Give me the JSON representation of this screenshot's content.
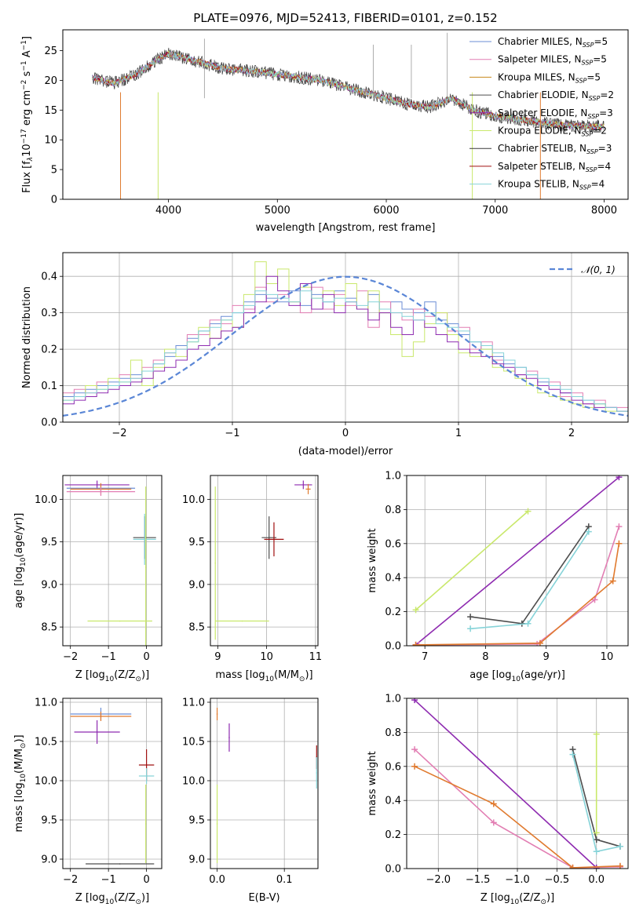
{
  "title": "PLATE=0976, MJD=52413, FIBERID=0101, z=0.152",
  "colors": {
    "chabrier_miles": "#6b8ed6",
    "salpeter_miles": "#e27eb3",
    "kroupa_miles": "#c8891c",
    "chabrier_elodie": "#4d4d4d",
    "salpeter_elodie": "#8e2bb0",
    "kroupa_elodie": "#c9e86b",
    "chabrier_stelib": "#3a3a3a",
    "salpeter_stelib": "#a01010",
    "kroupa_stelib": "#86d3d8",
    "gaussian": "#5a86d6",
    "kroupa_miles_plot": "#e07a2e"
  },
  "chart_data": [
    {
      "id": "spectrum",
      "type": "line",
      "xlabel": "wavelength [Angstrom, rest frame]",
      "ylabel_parts": [
        "Flux [f",
        "λ",
        "10",
        "−17",
        " erg cm",
        "−2",
        " s",
        "−1",
        " A",
        "−1",
        "]"
      ],
      "xlim": [
        3030,
        8220
      ],
      "ylim": [
        0,
        28.5
      ],
      "xticks": [
        4000,
        5000,
        6000,
        7000,
        8000
      ],
      "yticks": [
        0,
        5,
        10,
        15,
        20,
        25
      ],
      "grid": false,
      "legend_position": "top-right",
      "x": [
        3300,
        3500,
        3700,
        3900,
        4000,
        4100,
        4300,
        4500,
        4800,
        5000,
        5200,
        5400,
        5600,
        5800,
        6000,
        6200,
        6400,
        6600,
        6700,
        6800,
        6900,
        7000,
        7200,
        7400,
        7600,
        7800,
        8000
      ],
      "y": [
        20.5,
        19.5,
        21.0,
        23.5,
        24.5,
        24.0,
        23.0,
        22.0,
        21.5,
        21.0,
        20.5,
        20.0,
        19.0,
        18.0,
        17.0,
        16.0,
        15.5,
        17.0,
        16.0,
        15.0,
        14.5,
        14.0,
        13.5,
        13.0,
        12.5,
        12.3,
        12.2
      ],
      "series": [
        {
          "name": "Chabrier MILES, N",
          "sub": "SSP",
          "suffix": "=5",
          "color_key": "chabrier_miles"
        },
        {
          "name": "Salpeter MILES, N",
          "sub": "SSP",
          "suffix": "=5",
          "color_key": "salpeter_miles"
        },
        {
          "name": "Kroupa MILES, N",
          "sub": "SSP",
          "suffix": "=5",
          "color_key": "kroupa_miles"
        },
        {
          "name": "Chabrier ELODIE, N",
          "sub": "SSP",
          "suffix": "=2",
          "color_key": "chabrier_elodie"
        },
        {
          "name": "Salpeter ELODIE, N",
          "sub": "SSP",
          "suffix": "=3",
          "color_key": "salpeter_elodie"
        },
        {
          "name": "Kroupa ELODIE, N",
          "sub": "SSP",
          "suffix": "=2",
          "color_key": "kroupa_elodie"
        },
        {
          "name": "Chabrier STELIB, N",
          "sub": "SSP",
          "suffix": "=3",
          "color_key": "chabrier_stelib"
        },
        {
          "name": "Salpeter STELIB, N",
          "sub": "SSP",
          "suffix": "=4",
          "color_key": "salpeter_stelib"
        },
        {
          "name": "Kroupa STELIB, N",
          "sub": "SSP",
          "suffix": "=4",
          "color_key": "kroupa_stelib"
        }
      ]
    },
    {
      "id": "residuals",
      "type": "line",
      "xlabel": "(data-model)/error",
      "ylabel": "Normed distribution",
      "xlim": [
        -2.5,
        2.5
      ],
      "ylim": [
        0,
        0.465
      ],
      "xticks": [
        -2,
        -1,
        0,
        1,
        2
      ],
      "yticks": [
        0.0,
        0.1,
        0.2,
        0.3,
        0.4
      ],
      "grid": true,
      "legend": "N(0,1)",
      "legend_position": "top-right",
      "bin_centers": [
        -2.45,
        -2.35,
        -2.25,
        -2.15,
        -2.05,
        -1.95,
        -1.85,
        -1.75,
        -1.65,
        -1.55,
        -1.45,
        -1.35,
        -1.25,
        -1.15,
        -1.05,
        -0.95,
        -0.85,
        -0.75,
        -0.65,
        -0.55,
        -0.45,
        -0.35,
        -0.25,
        -0.15,
        -0.05,
        0.05,
        0.15,
        0.25,
        0.35,
        0.45,
        0.55,
        0.65,
        0.75,
        0.85,
        0.95,
        1.05,
        1.15,
        1.25,
        1.35,
        1.45,
        1.55,
        1.65,
        1.75,
        1.85,
        1.95,
        2.05,
        2.15,
        2.25,
        2.35,
        2.45
      ],
      "histograms": [
        {
          "color_key": "chabrier_miles",
          "values": [
            0.07,
            0.08,
            0.09,
            0.1,
            0.11,
            0.12,
            0.13,
            0.14,
            0.16,
            0.18,
            0.21,
            0.23,
            0.25,
            0.27,
            0.29,
            0.3,
            0.33,
            0.35,
            0.34,
            0.33,
            0.36,
            0.32,
            0.35,
            0.33,
            0.36,
            0.34,
            0.31,
            0.35,
            0.3,
            0.33,
            0.31,
            0.3,
            0.33,
            0.28,
            0.27,
            0.24,
            0.22,
            0.2,
            0.18,
            0.16,
            0.15,
            0.13,
            0.11,
            0.1,
            0.08,
            0.07,
            0.06,
            0.05,
            0.04,
            0.03
          ]
        },
        {
          "color_key": "salpeter_miles",
          "values": [
            0.08,
            0.09,
            0.08,
            0.11,
            0.1,
            0.13,
            0.12,
            0.15,
            0.17,
            0.19,
            0.2,
            0.24,
            0.24,
            0.28,
            0.27,
            0.32,
            0.31,
            0.37,
            0.33,
            0.35,
            0.33,
            0.3,
            0.37,
            0.31,
            0.35,
            0.32,
            0.36,
            0.26,
            0.33,
            0.3,
            0.28,
            0.31,
            0.29,
            0.3,
            0.25,
            0.26,
            0.2,
            0.22,
            0.17,
            0.17,
            0.13,
            0.14,
            0.1,
            0.11,
            0.07,
            0.08,
            0.05,
            0.06,
            0.04,
            0.04
          ]
        },
        {
          "color_key": "kroupa_elodie",
          "values": [
            0.06,
            0.07,
            0.1,
            0.09,
            0.12,
            0.11,
            0.17,
            0.1,
            0.15,
            0.2,
            0.18,
            0.22,
            0.26,
            0.23,
            0.28,
            0.26,
            0.35,
            0.44,
            0.38,
            0.42,
            0.33,
            0.37,
            0.34,
            0.36,
            0.32,
            0.38,
            0.31,
            0.36,
            0.3,
            0.24,
            0.18,
            0.22,
            0.27,
            0.3,
            0.24,
            0.19,
            0.18,
            0.2,
            0.15,
            0.14,
            0.12,
            0.1,
            0.08,
            0.07,
            0.06,
            0.05,
            0.04,
            0.05,
            0.03,
            0.03
          ]
        },
        {
          "color_key": "salpeter_elodie",
          "values": [
            0.05,
            0.06,
            0.07,
            0.08,
            0.09,
            0.1,
            0.11,
            0.12,
            0.14,
            0.15,
            0.17,
            0.2,
            0.21,
            0.23,
            0.25,
            0.26,
            0.3,
            0.33,
            0.4,
            0.36,
            0.32,
            0.38,
            0.31,
            0.35,
            0.3,
            0.33,
            0.31,
            0.28,
            0.3,
            0.26,
            0.24,
            0.28,
            0.26,
            0.24,
            0.22,
            0.2,
            0.19,
            0.18,
            0.16,
            0.15,
            0.13,
            0.12,
            0.1,
            0.09,
            0.08,
            0.06,
            0.05,
            0.04,
            0.04,
            0.03
          ]
        },
        {
          "color_key": "kroupa_stelib",
          "values": [
            0.06,
            0.07,
            0.08,
            0.09,
            0.1,
            0.11,
            0.12,
            0.14,
            0.16,
            0.19,
            0.2,
            0.22,
            0.25,
            0.26,
            0.28,
            0.3,
            0.32,
            0.36,
            0.35,
            0.34,
            0.33,
            0.36,
            0.34,
            0.33,
            0.34,
            0.33,
            0.32,
            0.33,
            0.31,
            0.3,
            0.29,
            0.28,
            0.3,
            0.27,
            0.26,
            0.25,
            0.22,
            0.21,
            0.19,
            0.17,
            0.15,
            0.13,
            0.12,
            0.1,
            0.09,
            0.07,
            0.06,
            0.05,
            0.04,
            0.03
          ]
        }
      ]
    },
    {
      "id": "age_vs_Z",
      "type": "scatter",
      "xlabel_parts": [
        "Z [log",
        "10",
        "(Z/Z",
        "⊙",
        ")]"
      ],
      "ylabel_parts": [
        "age  [log",
        "10",
        "(age/yr)]"
      ],
      "xlim": [
        -2.2,
        0.4
      ],
      "ylim": [
        8.28,
        10.28
      ],
      "xticks": [
        -2,
        -1,
        0
      ],
      "yticks": [
        8.5,
        9.0,
        9.5,
        10.0
      ],
      "grid": true,
      "points": [
        {
          "x": -1.3,
          "y": 10.17,
          "xerr": 0.85,
          "yerr": 0.05,
          "color_key": "salpeter_elodie"
        },
        {
          "x": -1.2,
          "y": 10.13,
          "xerr": 0.9,
          "yerr": 0.05,
          "color_key": "chabrier_miles"
        },
        {
          "x": -1.2,
          "y": 10.12,
          "xerr": 0.8,
          "yerr": 0.07,
          "color_key": "kroupa_miles_plot"
        },
        {
          "x": -1.2,
          "y": 10.09,
          "xerr": 0.9,
          "yerr": 0.05,
          "color_key": "salpeter_miles"
        },
        {
          "x": -0.05,
          "y": 9.55,
          "xerr": 0.3,
          "yerr": 0.25,
          "color_key": "chabrier_elodie"
        },
        {
          "x": -0.05,
          "y": 9.53,
          "xerr": 0.3,
          "yerr": 0.3,
          "color_key": "kroupa_stelib"
        },
        {
          "x": -0.7,
          "y": 8.57,
          "xerr": 0.85,
          "yerr": 0.0,
          "color_key": "kroupa_elodie"
        },
        {
          "x": -0.02,
          "y": 9.2,
          "xerr": 0.0,
          "yerr": 0.95,
          "color_key": "kroupa_elodie"
        }
      ]
    },
    {
      "id": "age_vs_mass",
      "type": "scatter",
      "xlabel_parts": [
        "mass [log",
        "10",
        "(M/M",
        "⊙",
        ")]"
      ],
      "xlim": [
        8.85,
        11.05
      ],
      "ylim": [
        8.28,
        10.28
      ],
      "xticks": [
        9,
        10,
        11
      ],
      "yticks": [
        8.5,
        9.0,
        9.5,
        10.0
      ],
      "grid": true,
      "points": [
        {
          "x": 10.75,
          "y": 10.17,
          "xerr": 0.18,
          "yerr": 0.05,
          "color_key": "salpeter_elodie"
        },
        {
          "x": 10.85,
          "y": 10.12,
          "xerr": 0.05,
          "yerr": 0.06,
          "color_key": "kroupa_miles_plot"
        },
        {
          "x": 10.05,
          "y": 9.55,
          "xerr": 0.15,
          "yerr": 0.25,
          "color_key": "chabrier_elodie"
        },
        {
          "x": 10.15,
          "y": 9.53,
          "xerr": 0.2,
          "yerr": 0.2,
          "color_key": "salpeter_stelib"
        },
        {
          "x": 9.5,
          "y": 8.57,
          "xerr": 0.55,
          "yerr": 0.0,
          "color_key": "kroupa_elodie"
        },
        {
          "x": 8.95,
          "y": 9.25,
          "xerr": 0.0,
          "yerr": 0.9,
          "color_key": "kroupa_elodie"
        }
      ]
    },
    {
      "id": "weight_vs_age",
      "type": "line",
      "xlabel_parts": [
        "age  [log",
        "10",
        "(age/yr)]"
      ],
      "ylabel": "mass weight",
      "xlim": [
        6.7,
        10.35
      ],
      "ylim": [
        0,
        1.0
      ],
      "xticks": [
        7,
        8,
        9,
        10
      ],
      "yticks": [
        0.0,
        0.2,
        0.4,
        0.6,
        0.8,
        1.0
      ],
      "grid": true,
      "series": [
        {
          "color_key": "kroupa_elodie",
          "x": [
            6.85,
            8.7
          ],
          "y": [
            0.21,
            0.79
          ]
        },
        {
          "color_key": "salpeter_elodie",
          "x": [
            6.85,
            10.2
          ],
          "y": [
            0.005,
            0.99
          ]
        },
        {
          "color_key": "chabrier_elodie",
          "x": [
            7.75,
            8.6,
            9.7
          ],
          "y": [
            0.17,
            0.13,
            0.7
          ]
        },
        {
          "color_key": "kroupa_stelib",
          "x": [
            7.75,
            8.7,
            9.7
          ],
          "y": [
            0.1,
            0.13,
            0.67
          ]
        },
        {
          "color_key": "salpeter_miles",
          "x": [
            6.9,
            8.85,
            9.8,
            10.2
          ],
          "y": [
            0.005,
            0.01,
            0.27,
            0.7
          ]
        },
        {
          "color_key": "kroupa_miles_plot",
          "x": [
            6.85,
            8.9,
            10.1,
            10.2
          ],
          "y": [
            0.005,
            0.015,
            0.38,
            0.6
          ]
        }
      ]
    },
    {
      "id": "mass_vs_Z",
      "type": "scatter",
      "xlabel_parts": [
        "Z [log",
        "10",
        "(Z/Z",
        "⊙",
        ")]"
      ],
      "ylabel_parts": [
        "mass [log",
        "10",
        "(M/M",
        "⊙",
        ")]"
      ],
      "xlim": [
        -2.2,
        0.4
      ],
      "ylim": [
        8.88,
        11.05
      ],
      "xticks": [
        -2,
        -1,
        0
      ],
      "yticks": [
        9.0,
        9.5,
        10.0,
        10.5,
        11.0
      ],
      "grid": true,
      "points": [
        {
          "x": -1.2,
          "y": 10.85,
          "xerr": 0.8,
          "yerr": 0.08,
          "color_key": "chabrier_miles"
        },
        {
          "x": -1.2,
          "y": 10.82,
          "xerr": 0.8,
          "yerr": 0.06,
          "color_key": "kroupa_miles_plot"
        },
        {
          "x": -1.3,
          "y": 10.62,
          "xerr": 0.6,
          "yerr": 0.15,
          "color_key": "salpeter_elodie"
        },
        {
          "x": 0.0,
          "y": 10.2,
          "xerr": 0.2,
          "yerr": 0.2,
          "color_key": "salpeter_stelib"
        },
        {
          "x": 0.0,
          "y": 10.06,
          "xerr": 0.2,
          "yerr": 0.1,
          "color_key": "kroupa_stelib"
        },
        {
          "x": -0.7,
          "y": 8.94,
          "xerr": 0.9,
          "yerr": 0.0,
          "color_key": "chabrier_elodie"
        },
        {
          "x": -0.02,
          "y": 9.45,
          "xerr": 0.0,
          "yerr": 0.5,
          "color_key": "kroupa_elodie"
        }
      ]
    },
    {
      "id": "mass_vs_EBV",
      "type": "scatter",
      "xlabel": "E(B-V)",
      "xlim": [
        -0.01,
        0.15
      ],
      "ylim": [
        8.88,
        11.05
      ],
      "xticks": [
        0.0,
        0.1
      ],
      "yticks": [
        9.0,
        9.5,
        10.0,
        10.5,
        11.0
      ],
      "grid": true,
      "points": [
        {
          "x": 0.0,
          "y": 10.85,
          "xerr": 0.0,
          "yerr": 0.08,
          "color_key": "kroupa_miles_plot"
        },
        {
          "x": 0.018,
          "y": 10.55,
          "xerr": 0.0,
          "yerr": 0.18,
          "color_key": "salpeter_elodie"
        },
        {
          "x": 0.148,
          "y": 10.3,
          "xerr": 0.0,
          "yerr": 0.15,
          "color_key": "salpeter_stelib"
        },
        {
          "x": 0.148,
          "y": 10.1,
          "xerr": 0.0,
          "yerr": 0.2,
          "color_key": "kroupa_stelib"
        },
        {
          "x": 0.0,
          "y": 9.45,
          "xerr": 0.0,
          "yerr": 0.5,
          "color_key": "kroupa_elodie"
        }
      ]
    },
    {
      "id": "weight_vs_Z",
      "type": "line",
      "xlabel_parts": [
        "Z [log",
        "10",
        "(Z/Z",
        "⊙",
        ")]"
      ],
      "ylabel": "mass weight",
      "xlim": [
        -2.4,
        0.4
      ],
      "ylim": [
        0,
        1.0
      ],
      "xticks": [
        -2.0,
        -1.5,
        -1.0,
        -0.5,
        0.0
      ],
      "yticks": [
        0.0,
        0.2,
        0.4,
        0.6,
        0.8,
        1.0
      ],
      "grid": true,
      "series": [
        {
          "color_key": "salpeter_elodie",
          "x": [
            -2.3,
            0.0
          ],
          "y": [
            0.99,
            0.005
          ]
        },
        {
          "color_key": "salpeter_miles",
          "x": [
            -2.3,
            -1.3,
            -0.3,
            0.3
          ],
          "y": [
            0.7,
            0.27,
            0.005,
            0.01
          ]
        },
        {
          "color_key": "kroupa_miles_plot",
          "x": [
            -2.3,
            -1.3,
            -0.3,
            0.3
          ],
          "y": [
            0.6,
            0.38,
            0.005,
            0.015
          ]
        },
        {
          "color_key": "chabrier_elodie",
          "x": [
            -0.3,
            0.0,
            0.3
          ],
          "y": [
            0.7,
            0.17,
            0.13
          ]
        },
        {
          "color_key": "kroupa_stelib",
          "x": [
            -0.3,
            0.0,
            0.3
          ],
          "y": [
            0.67,
            0.1,
            0.13
          ]
        },
        {
          "color_key": "kroupa_elodie",
          "x": [
            0.0,
            0.0
          ],
          "y": [
            0.79,
            0.21
          ]
        }
      ]
    }
  ]
}
